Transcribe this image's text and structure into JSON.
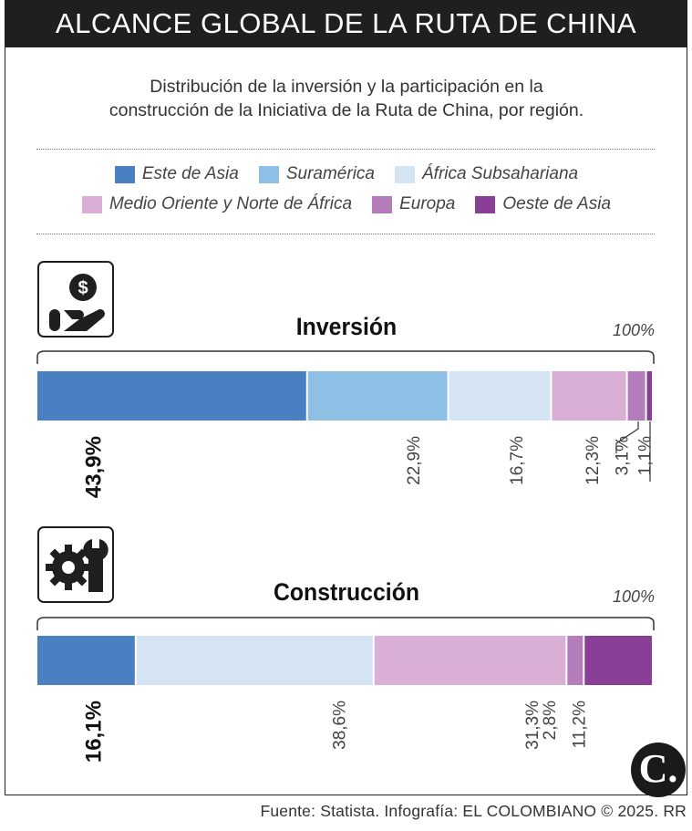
{
  "header": {
    "title": "ALCANCE GLOBAL DE LA RUTA DE CHINA"
  },
  "subtitle": {
    "line1": "Distribución de la inversión y la participación en la",
    "line2": "construcción de la Iniciativa de la Ruta de China, por región."
  },
  "legend": [
    {
      "label": "Este de Asia",
      "color": "#4a7fc1"
    },
    {
      "label": "Suramérica",
      "color": "#8ec0e6"
    },
    {
      "label": "África Subsahariana",
      "color": "#d5e4f3"
    },
    {
      "label": "Medio Oriente y Norte de África",
      "color": "#d9afd6"
    },
    {
      "label": "Europa",
      "color": "#b57cbb"
    },
    {
      "label": "Oeste de Asia",
      "color": "#8a3f96"
    }
  ],
  "icons": {
    "investment": "money-hand-icon",
    "construction": "gear-wrench-icon"
  },
  "chart_data": [
    {
      "type": "bar",
      "orientation": "horizontal-stacked",
      "title": "Inversión",
      "total_label": "100%",
      "categories": [
        "Este de Asia",
        "Suramérica",
        "África Subsahariana",
        "Medio Oriente y Norte de África",
        "Europa",
        "Oeste de Asia"
      ],
      "values": [
        43.9,
        22.9,
        16.7,
        12.3,
        3.1,
        1.1
      ],
      "labels": [
        "43,9%",
        "22,9%",
        "16,7%",
        "12,3%",
        "3,1%",
        "1,1%"
      ]
    },
    {
      "type": "bar",
      "orientation": "horizontal-stacked",
      "title": "Construcción",
      "total_label": "100%",
      "categories": [
        "Este de Asia",
        "África Subsahariana",
        "Medio Oriente y Norte de África",
        "Europa",
        "Oeste de Asia"
      ],
      "values": [
        16.1,
        38.6,
        31.3,
        2.8,
        11.2
      ],
      "labels": [
        "16,1%",
        "38,6%",
        "31,3%",
        "2,8%",
        "11,2%"
      ]
    }
  ],
  "footer": {
    "source": "Fuente: Statista. Infografía: EL COLOMBIANO © 2025. RR",
    "logo": "C."
  }
}
